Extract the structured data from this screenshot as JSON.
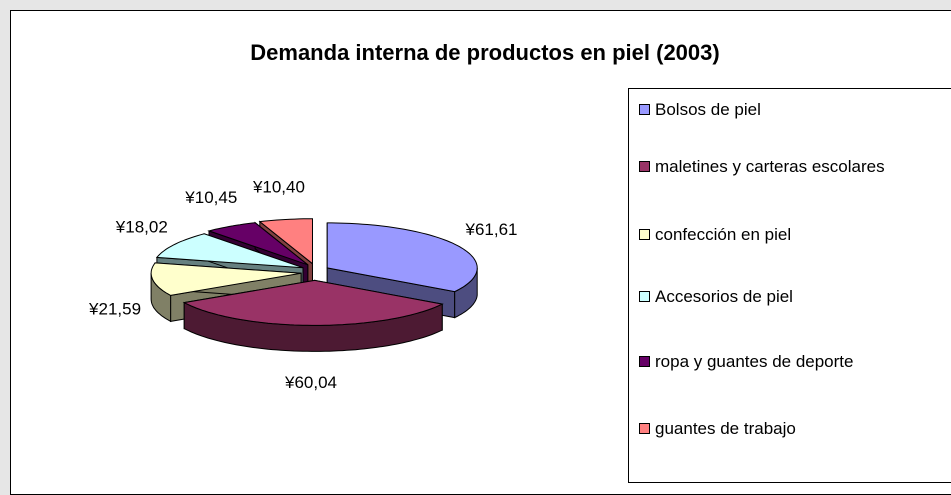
{
  "chart_data": {
    "type": "pie3d",
    "title": "Demanda interna de productos en piel (2003)",
    "categories": [
      "Bolsos de piel",
      "maletines y carteras escolares",
      "confección en piel",
      "Accesorios de piel",
      "ropa y guantes de deporte",
      "guantes de trabajo"
    ],
    "values": [
      61.61,
      60.04,
      21.59,
      18.02,
      10.45,
      10.4
    ],
    "value_labels": [
      "¥61,61",
      "¥60,04",
      "¥21,59",
      "¥18,02",
      "¥10,45",
      "¥10,40"
    ],
    "colors": [
      "#9999ff",
      "#993366",
      "#ffffcc",
      "#ccffff",
      "#660066",
      "#ff8080"
    ],
    "legend": "right"
  }
}
